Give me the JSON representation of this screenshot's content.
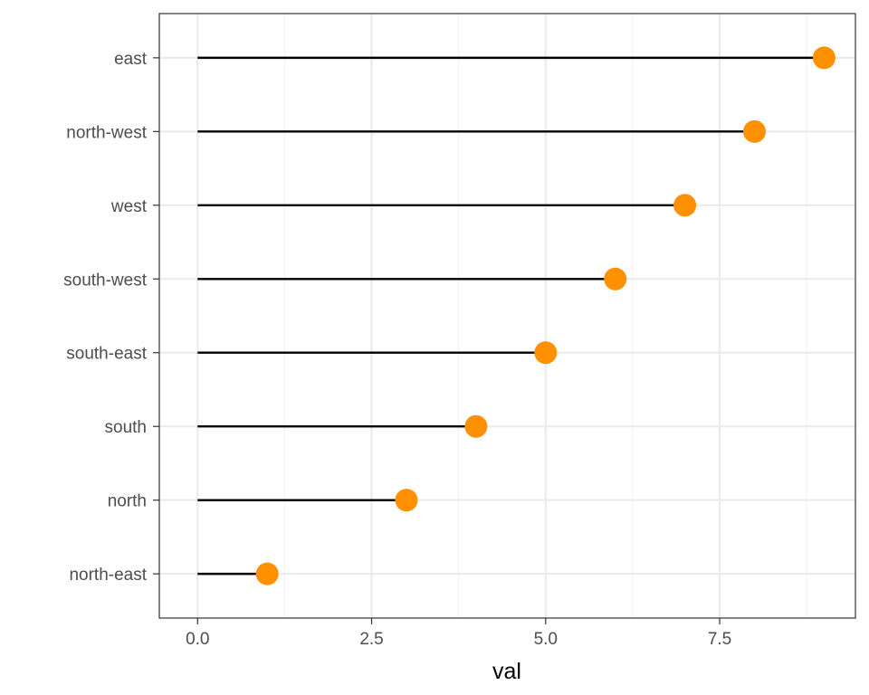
{
  "chart_data": {
    "type": "lollipop",
    "categories": [
      "north-east",
      "north",
      "south",
      "south-east",
      "south-west",
      "west",
      "north-west",
      "east"
    ],
    "values": [
      1,
      3,
      4,
      5,
      6,
      7,
      8,
      9
    ],
    "xlabel": "val",
    "ylabel": "",
    "xlim": [
      -0.55,
      9.45
    ],
    "xticks": [
      0.0,
      2.5,
      5.0,
      7.5
    ],
    "xtick_labels": [
      "0.0",
      "2.5",
      "5.0",
      "7.5"
    ],
    "grid": true,
    "colors": {
      "point": "#FF9000",
      "stem": "#000000",
      "grid_major": "#ebebeb",
      "grid_minor": "#f3f3f3",
      "panel_border": "#333333",
      "tick_label": "#4d4d4d"
    }
  }
}
